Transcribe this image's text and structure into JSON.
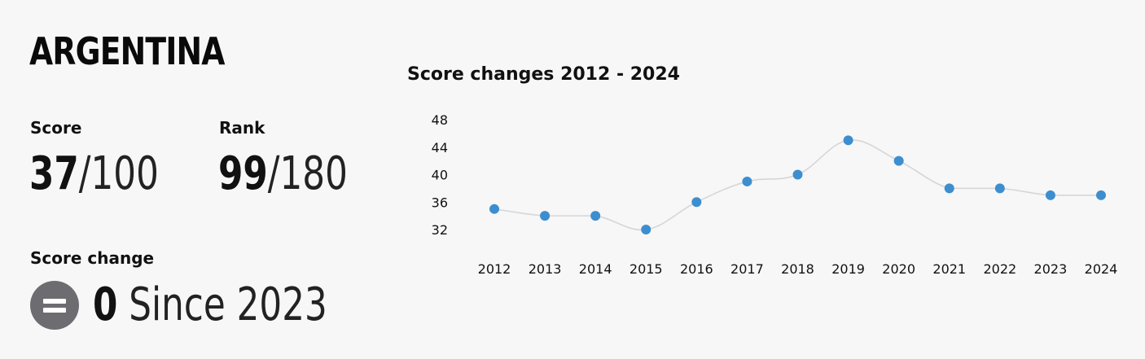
{
  "country": "ARGENTINA",
  "score": {
    "label": "Score",
    "value": "37",
    "total": "/100"
  },
  "rank": {
    "label": "Rank",
    "value": "99",
    "total": "/180"
  },
  "score_change": {
    "label": "Score change",
    "value": "0",
    "since": "Since 2023",
    "icon": "equals-icon"
  },
  "colors": {
    "point": "#3d8ecf",
    "line": "#d6d6d6",
    "icon_bg": "#6d6c70"
  },
  "chart_data": {
    "type": "line",
    "title": "Score changes 2012 - 2024",
    "categories": [
      "2012",
      "2013",
      "2014",
      "2015",
      "2016",
      "2017",
      "2018",
      "2019",
      "2020",
      "2021",
      "2022",
      "2023",
      "2024"
    ],
    "values": [
      35,
      34,
      34,
      32,
      36,
      39,
      40,
      45,
      42,
      38,
      38,
      37,
      37
    ],
    "yticks": [
      32,
      36,
      40,
      44,
      48
    ],
    "ylim": [
      32,
      48
    ],
    "xlabel": "",
    "ylabel": "",
    "grid": false,
    "legend": "none"
  }
}
